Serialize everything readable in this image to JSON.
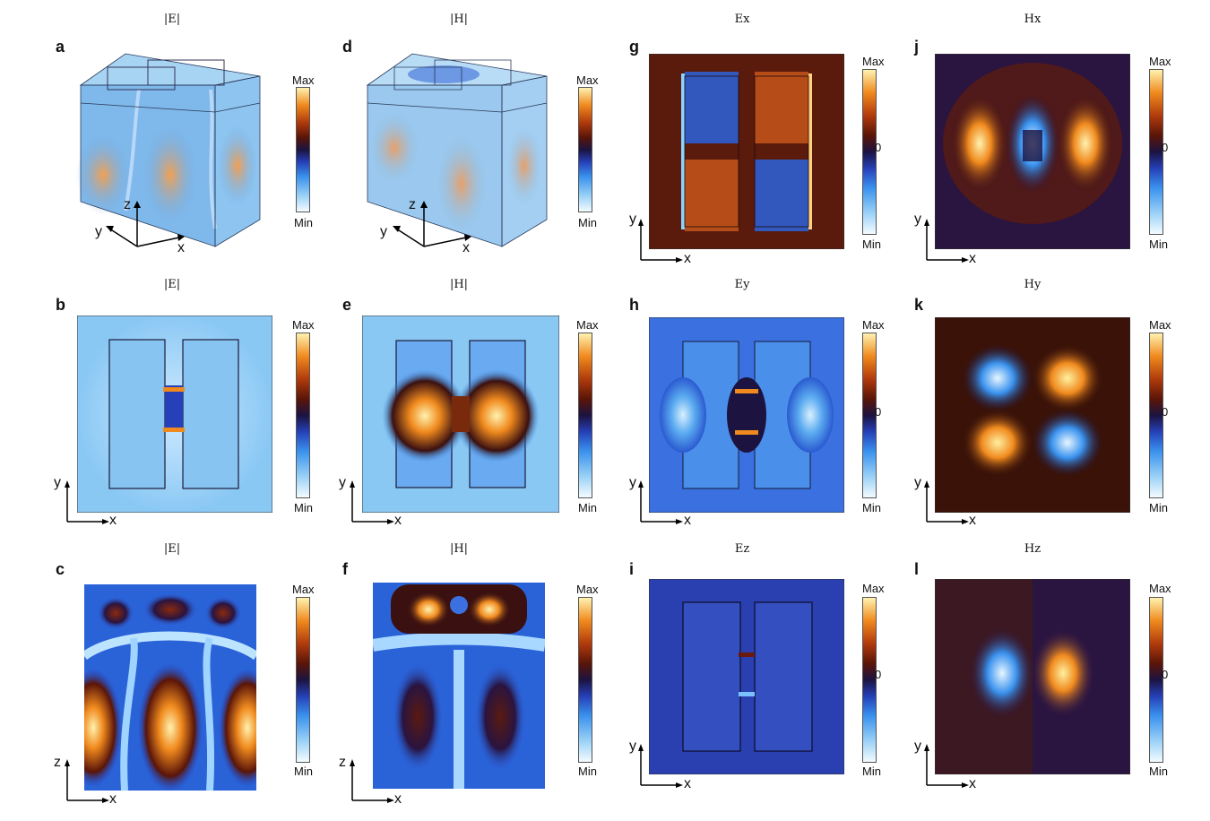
{
  "panels": [
    {
      "id": "a",
      "title": "|E|",
      "cb_top": "Max",
      "cb_mid": "",
      "cb_bot": "Min",
      "ax1": "z",
      "ax2": "x",
      "ax3": "y"
    },
    {
      "id": "b",
      "title": "|E|",
      "cb_top": "Max",
      "cb_mid": "",
      "cb_bot": "Min",
      "ax1": "y",
      "ax2": "x"
    },
    {
      "id": "c",
      "title": "|E|",
      "cb_top": "Max",
      "cb_mid": "",
      "cb_bot": "Min",
      "ax1": "z",
      "ax2": "x"
    },
    {
      "id": "d",
      "title": "|H|",
      "cb_top": "Max",
      "cb_mid": "",
      "cb_bot": "Min",
      "ax1": "z",
      "ax2": "x",
      "ax3": "y"
    },
    {
      "id": "e",
      "title": "|H|",
      "cb_top": "Max",
      "cb_mid": "",
      "cb_bot": "Min",
      "ax1": "y",
      "ax2": "x"
    },
    {
      "id": "f",
      "title": "|H|",
      "cb_top": "Max",
      "cb_mid": "",
      "cb_bot": "Min",
      "ax1": "z",
      "ax2": "x"
    },
    {
      "id": "g",
      "title": "Ex",
      "cb_top": "Max",
      "cb_mid": "0",
      "cb_bot": "Min",
      "ax1": "y",
      "ax2": "x"
    },
    {
      "id": "h",
      "title": "Ey",
      "cb_top": "Max",
      "cb_mid": "0",
      "cb_bot": "Min",
      "ax1": "y",
      "ax2": "x"
    },
    {
      "id": "i",
      "title": "Ez",
      "cb_top": "Max",
      "cb_mid": "0",
      "cb_bot": "Min",
      "ax1": "y",
      "ax2": "x"
    },
    {
      "id": "j",
      "title": "Hx",
      "cb_top": "Max",
      "cb_mid": "0",
      "cb_bot": "Min",
      "ax1": "y",
      "ax2": "x"
    },
    {
      "id": "k",
      "title": "Hy",
      "cb_top": "Max",
      "cb_mid": "0",
      "cb_bot": "Min",
      "ax1": "y",
      "ax2": "x"
    },
    {
      "id": "l",
      "title": "Hz",
      "cb_top": "Max",
      "cb_mid": "0",
      "cb_bot": "Min",
      "ax1": "y",
      "ax2": "x"
    }
  ],
  "colors": {
    "max": "#fff2b0",
    "orange": "#f08a1e",
    "zero": "#1c1340",
    "blue": "#3a92ee",
    "min": "#f4fbff"
  }
}
